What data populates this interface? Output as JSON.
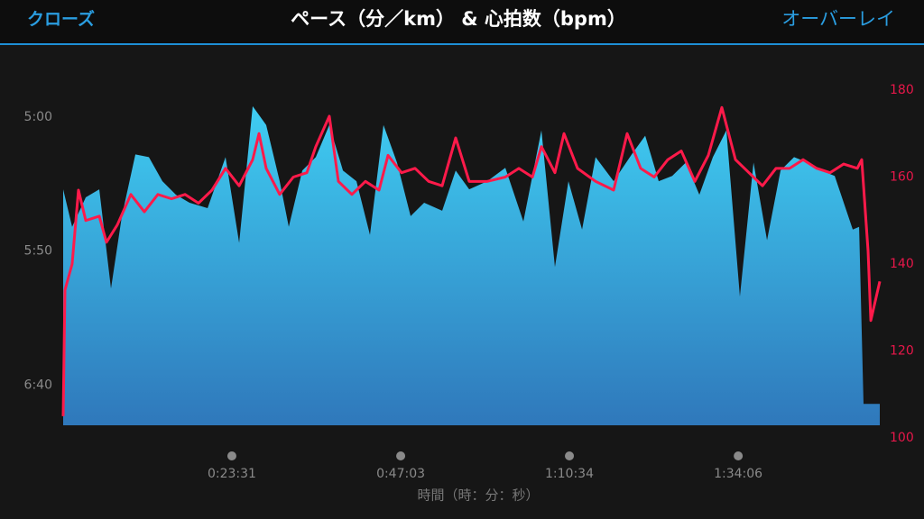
{
  "header": {
    "close": "クローズ",
    "overlay": "オーバーレイ"
  },
  "chart_data": {
    "type": "area-line",
    "title": "ペース（分／km） & 心拍数（bpm）",
    "x_label": "時間（時：分：秒）",
    "xlim": [
      0,
      6830
    ],
    "xticks": [
      {
        "value": 1411,
        "label": "0:23:31"
      },
      {
        "value": 2823,
        "label": "0:47:03"
      },
      {
        "value": 4234,
        "label": "1:10:34"
      },
      {
        "value": 5646,
        "label": "1:34:06"
      }
    ],
    "ylim": [
      415,
      290
    ],
    "yticks": [
      {
        "value": 300,
        "label": "5:00"
      },
      {
        "value": 350,
        "label": "5:50"
      },
      {
        "value": 400,
        "label": "6:40"
      }
    ],
    "y2lim": [
      100,
      180
    ],
    "y2ticks": [
      100,
      120,
      140,
      160,
      180
    ],
    "series": [
      {
        "type": "area",
        "color": "#2aa6de",
        "x": [
          0,
          75,
          189,
          302,
          400,
          491,
          604,
          717,
          830,
          943,
          1057,
          1208,
          1358,
          1472,
          1585,
          1698,
          1811,
          1887,
          2000,
          2113,
          2226,
          2340,
          2453,
          2566,
          2679,
          2792,
          2906,
          3019,
          3170,
          3283,
          3396,
          3547,
          3698,
          3849,
          4000,
          4113,
          4226,
          4340,
          4453,
          4604,
          4755,
          4868,
          4981,
          5094,
          5208,
          5321,
          5434,
          5547,
          5660,
          5774,
          5887,
          6000,
          6113,
          6226,
          6340,
          6453,
          6604,
          6657,
          6694,
          6830
        ],
        "values": [
          327,
          341,
          330,
          327,
          364,
          337,
          314,
          315,
          324,
          329,
          332,
          334,
          315,
          347,
          296,
          303,
          324,
          341,
          320,
          315,
          303,
          320,
          324,
          344,
          303,
          317,
          337,
          332,
          335,
          320,
          327,
          324,
          319,
          339,
          305,
          356,
          324,
          342,
          315,
          324,
          314,
          307,
          324,
          322,
          317,
          329,
          315,
          305,
          367,
          317,
          346,
          320,
          315,
          317,
          320,
          322,
          342,
          341,
          407,
          407
        ]
      },
      {
        "type": "line",
        "axis": "y2",
        "color": "#ff1a4a",
        "x": [
          0,
          15,
          75,
          128,
          189,
          302,
          362,
          453,
          566,
          679,
          792,
          906,
          1019,
          1132,
          1245,
          1358,
          1472,
          1585,
          1638,
          1698,
          1811,
          1925,
          2038,
          2113,
          2226,
          2302,
          2415,
          2528,
          2642,
          2717,
          2830,
          2943,
          3057,
          3170,
          3283,
          3396,
          3547,
          3698,
          3811,
          3925,
          4000,
          4113,
          4189,
          4302,
          4453,
          4604,
          4717,
          4830,
          4943,
          5057,
          5170,
          5283,
          5396,
          5509,
          5623,
          5736,
          5849,
          5962,
          6075,
          6189,
          6302,
          6415,
          6528,
          6642,
          6679,
          6732,
          6755,
          6830
        ],
        "values": [
          105,
          134,
          140,
          157,
          150,
          151,
          145,
          149,
          156,
          152,
          156,
          155,
          156,
          154,
          157,
          162,
          158,
          164,
          170,
          162,
          156,
          160,
          161,
          167,
          174,
          159,
          156,
          159,
          157,
          165,
          161,
          162,
          159,
          158,
          169,
          159,
          159,
          160,
          162,
          160,
          167,
          161,
          170,
          162,
          159,
          157,
          170,
          162,
          160,
          164,
          166,
          159,
          165,
          176,
          164,
          161,
          158,
          162,
          162,
          164,
          162,
          161,
          163,
          162,
          164,
          143,
          127,
          136
        ]
      }
    ]
  }
}
